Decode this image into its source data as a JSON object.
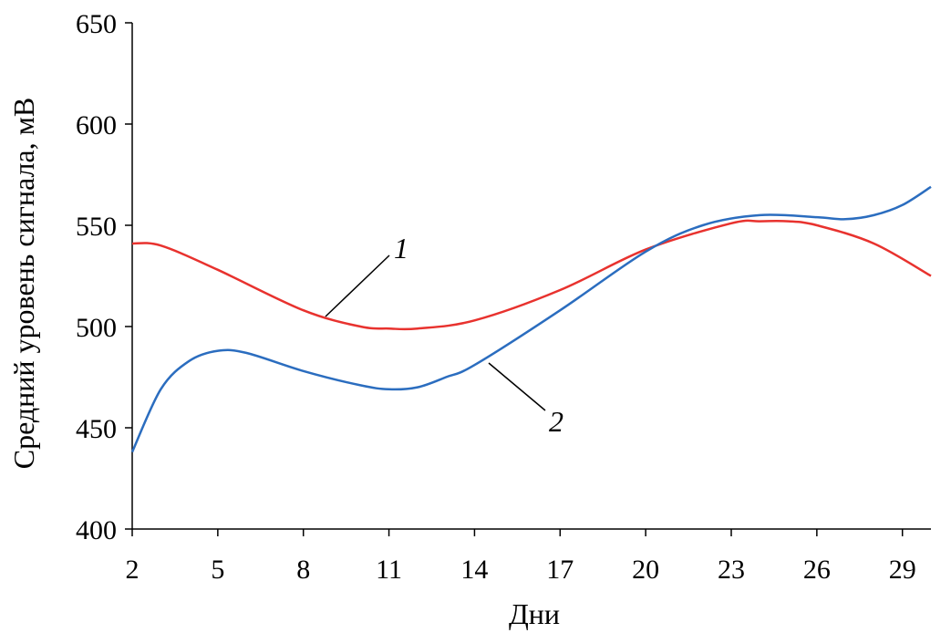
{
  "chart_data": {
    "type": "line",
    "xlabel": "Дни",
    "ylabel": "Средний уровень сигнала, мВ",
    "xlim": [
      2,
      30
    ],
    "ylim": [
      400,
      650
    ],
    "xticks": [
      2,
      5,
      8,
      11,
      14,
      17,
      20,
      23,
      26,
      29
    ],
    "yticks": [
      400,
      450,
      500,
      550,
      600,
      650
    ],
    "grid": false,
    "series": [
      {
        "name": "1",
        "color": "#e8322e",
        "x": [
          2,
          3,
          5,
          8,
          10,
          11,
          12,
          14,
          17,
          20,
          23,
          24,
          25,
          26,
          28,
          30
        ],
        "y": [
          541,
          540,
          528,
          508,
          500,
          499,
          499,
          503,
          518,
          538,
          551,
          552,
          552,
          550,
          541,
          525
        ]
      },
      {
        "name": "2",
        "color": "#2b6dbf",
        "x": [
          2,
          3,
          4,
          5,
          6,
          8,
          10,
          11,
          12,
          13,
          14,
          17,
          20,
          22,
          24,
          26,
          27,
          28,
          29,
          30
        ],
        "y": [
          438,
          469,
          483,
          488,
          487,
          478,
          471,
          469,
          470,
          475,
          481,
          508,
          537,
          550,
          555,
          554,
          553,
          555,
          560,
          569
        ]
      }
    ],
    "annotations": [
      {
        "text": "1",
        "series": "1"
      },
      {
        "text": "2",
        "series": "2"
      }
    ]
  }
}
